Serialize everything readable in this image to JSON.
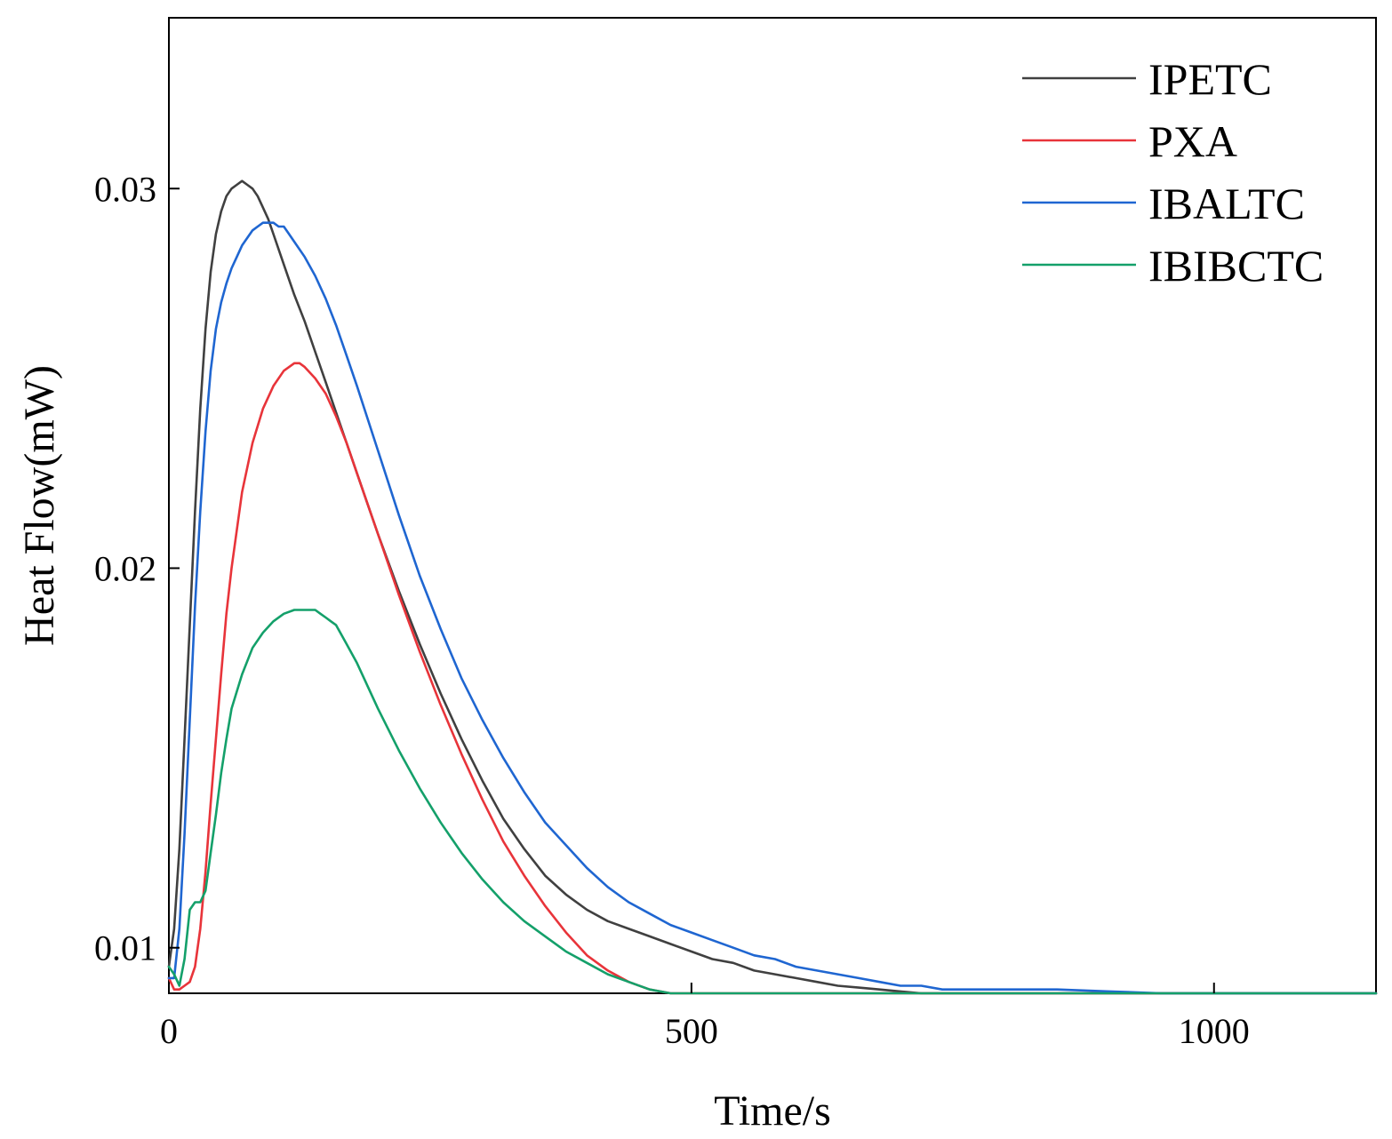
{
  "chart_data": {
    "type": "line",
    "title": "",
    "xlabel": "Time/s",
    "ylabel": "Heat Flow(mW)",
    "xlim": [
      0,
      1155
    ],
    "ylim": [
      0.0088,
      0.0345
    ],
    "x_ticks": [
      0,
      500,
      1000
    ],
    "x_tick_labels": [
      "0",
      "500",
      "1000"
    ],
    "y_ticks": [
      0.01,
      0.02,
      0.03
    ],
    "y_tick_labels": [
      "0.01",
      "0.02",
      "0.03"
    ],
    "grid": false,
    "legend_position": "top-right",
    "series": [
      {
        "name": "IPETC",
        "color": "#404040",
        "x": [
          0,
          5,
          10,
          15,
          20,
          25,
          30,
          35,
          40,
          45,
          50,
          55,
          60,
          65,
          70,
          75,
          80,
          85,
          90,
          95,
          100,
          110,
          120,
          130,
          140,
          150,
          160,
          170,
          180,
          190,
          200,
          220,
          240,
          260,
          280,
          300,
          320,
          340,
          360,
          380,
          400,
          420,
          440,
          460,
          480,
          500,
          520,
          540,
          560,
          580,
          600,
          620,
          640,
          660,
          680,
          700,
          720,
          740,
          760,
          780,
          800,
          850,
          900,
          950,
          1000,
          1050,
          1100,
          1155
        ],
        "y": [
          0.0095,
          0.0105,
          0.0126,
          0.0155,
          0.0185,
          0.0215,
          0.0242,
          0.0263,
          0.0278,
          0.0288,
          0.0294,
          0.0298,
          0.03,
          0.0301,
          0.0302,
          0.0301,
          0.03,
          0.0298,
          0.0295,
          0.0292,
          0.0288,
          0.028,
          0.0272,
          0.0265,
          0.0257,
          0.0249,
          0.0241,
          0.0233,
          0.0225,
          0.0217,
          0.0209,
          0.0194,
          0.018,
          0.0167,
          0.0155,
          0.0144,
          0.0134,
          0.0126,
          0.0119,
          0.0114,
          0.011,
          0.0107,
          0.0105,
          0.0103,
          0.0101,
          0.0099,
          0.0097,
          0.0096,
          0.0094,
          0.0093,
          0.0092,
          0.0091,
          0.009,
          0.00895,
          0.0089,
          0.00885,
          0.0088,
          0.0088,
          0.0088,
          0.0088,
          0.0088,
          0.0088,
          0.0088,
          0.0088,
          0.0088,
          0.0088,
          0.0088,
          0.0088
        ]
      },
      {
        "name": "PXA",
        "color": "#e8343a",
        "x": [
          0,
          5,
          10,
          15,
          20,
          25,
          30,
          35,
          40,
          45,
          50,
          55,
          60,
          70,
          80,
          90,
          100,
          110,
          120,
          125,
          130,
          140,
          150,
          160,
          170,
          180,
          200,
          220,
          240,
          260,
          280,
          300,
          320,
          340,
          360,
          380,
          400,
          420,
          440,
          460,
          480,
          500,
          520,
          540,
          560,
          580,
          600,
          620,
          640,
          660,
          680,
          700,
          720,
          740,
          760,
          780,
          800,
          850,
          900,
          950,
          1000,
          1050,
          1100,
          1155
        ],
        "y": [
          0.0092,
          0.0089,
          0.0089,
          0.009,
          0.0091,
          0.0095,
          0.0105,
          0.012,
          0.0138,
          0.0155,
          0.0172,
          0.0188,
          0.02,
          0.022,
          0.0233,
          0.0242,
          0.0248,
          0.0252,
          0.0254,
          0.0254,
          0.0253,
          0.025,
          0.0246,
          0.024,
          0.0233,
          0.0225,
          0.0209,
          0.0193,
          0.0178,
          0.0164,
          0.0151,
          0.0139,
          0.0128,
          0.0119,
          0.0111,
          0.0104,
          0.0098,
          0.0094,
          0.0091,
          0.0089,
          0.0088,
          0.0088,
          0.0088,
          0.0088,
          0.0088,
          0.0088,
          0.0088,
          0.0088,
          0.0088,
          0.0088,
          0.0088,
          0.0088,
          0.0088,
          0.0088,
          0.0088,
          0.0088,
          0.0088,
          0.0088,
          0.0088,
          0.0088,
          0.0088,
          0.0088,
          0.0088,
          0.0088
        ]
      },
      {
        "name": "IBALTC",
        "color": "#1f66d1",
        "x": [
          0,
          5,
          10,
          15,
          20,
          25,
          30,
          35,
          40,
          45,
          50,
          55,
          60,
          65,
          70,
          75,
          80,
          85,
          90,
          95,
          100,
          105,
          110,
          115,
          120,
          130,
          140,
          150,
          160,
          170,
          180,
          200,
          220,
          240,
          260,
          280,
          300,
          320,
          340,
          360,
          380,
          400,
          420,
          440,
          460,
          480,
          500,
          520,
          540,
          560,
          580,
          600,
          620,
          640,
          660,
          680,
          700,
          720,
          740,
          760,
          780,
          800,
          850,
          900,
          950,
          1000,
          1050,
          1100,
          1155
        ],
        "y": [
          0.0092,
          0.0092,
          0.0105,
          0.013,
          0.016,
          0.019,
          0.0215,
          0.0236,
          0.0252,
          0.0263,
          0.027,
          0.0275,
          0.0279,
          0.0282,
          0.0285,
          0.0287,
          0.0289,
          0.029,
          0.0291,
          0.0291,
          0.0291,
          0.029,
          0.029,
          0.0288,
          0.0286,
          0.0282,
          0.0277,
          0.0271,
          0.0264,
          0.0256,
          0.0248,
          0.0231,
          0.0214,
          0.0198,
          0.0184,
          0.0171,
          0.016,
          0.015,
          0.0141,
          0.0133,
          0.0127,
          0.0121,
          0.0116,
          0.0112,
          0.0109,
          0.0106,
          0.0104,
          0.0102,
          0.01,
          0.0098,
          0.0097,
          0.0095,
          0.0094,
          0.0093,
          0.0092,
          0.0091,
          0.009,
          0.009,
          0.0089,
          0.0089,
          0.0089,
          0.0089,
          0.0089,
          0.00885,
          0.0088,
          0.0088,
          0.0088,
          0.0088,
          0.0088
        ]
      },
      {
        "name": "IBIBCTC",
        "color": "#14a06a",
        "x": [
          0,
          5,
          10,
          15,
          20,
          25,
          30,
          35,
          40,
          45,
          50,
          55,
          60,
          70,
          80,
          90,
          100,
          110,
          120,
          130,
          140,
          145,
          150,
          155,
          160,
          170,
          180,
          190,
          200,
          220,
          240,
          260,
          280,
          300,
          320,
          340,
          360,
          380,
          400,
          420,
          440,
          460,
          480,
          500,
          520,
          540,
          560,
          580,
          600,
          620,
          640,
          660,
          680,
          700,
          720,
          740,
          760,
          780,
          800,
          850,
          900,
          950,
          1000,
          1050,
          1100,
          1155
        ],
        "y": [
          0.0095,
          0.0093,
          0.009,
          0.0097,
          0.011,
          0.0112,
          0.0112,
          0.0115,
          0.0125,
          0.0135,
          0.0146,
          0.0155,
          0.0163,
          0.0172,
          0.0179,
          0.0183,
          0.0186,
          0.0188,
          0.0189,
          0.0189,
          0.0189,
          0.0188,
          0.0187,
          0.0186,
          0.0185,
          0.018,
          0.0175,
          0.0169,
          0.0163,
          0.0152,
          0.0142,
          0.0133,
          0.0125,
          0.0118,
          0.0112,
          0.0107,
          0.0103,
          0.0099,
          0.0096,
          0.0093,
          0.0091,
          0.0089,
          0.0088,
          0.0088,
          0.0088,
          0.0088,
          0.0088,
          0.0088,
          0.0088,
          0.0088,
          0.0088,
          0.0088,
          0.0088,
          0.0088,
          0.0088,
          0.0088,
          0.0088,
          0.0088,
          0.0088,
          0.0088,
          0.0088,
          0.0088,
          0.0088,
          0.0088,
          0.0088,
          0.0088
        ]
      }
    ]
  }
}
